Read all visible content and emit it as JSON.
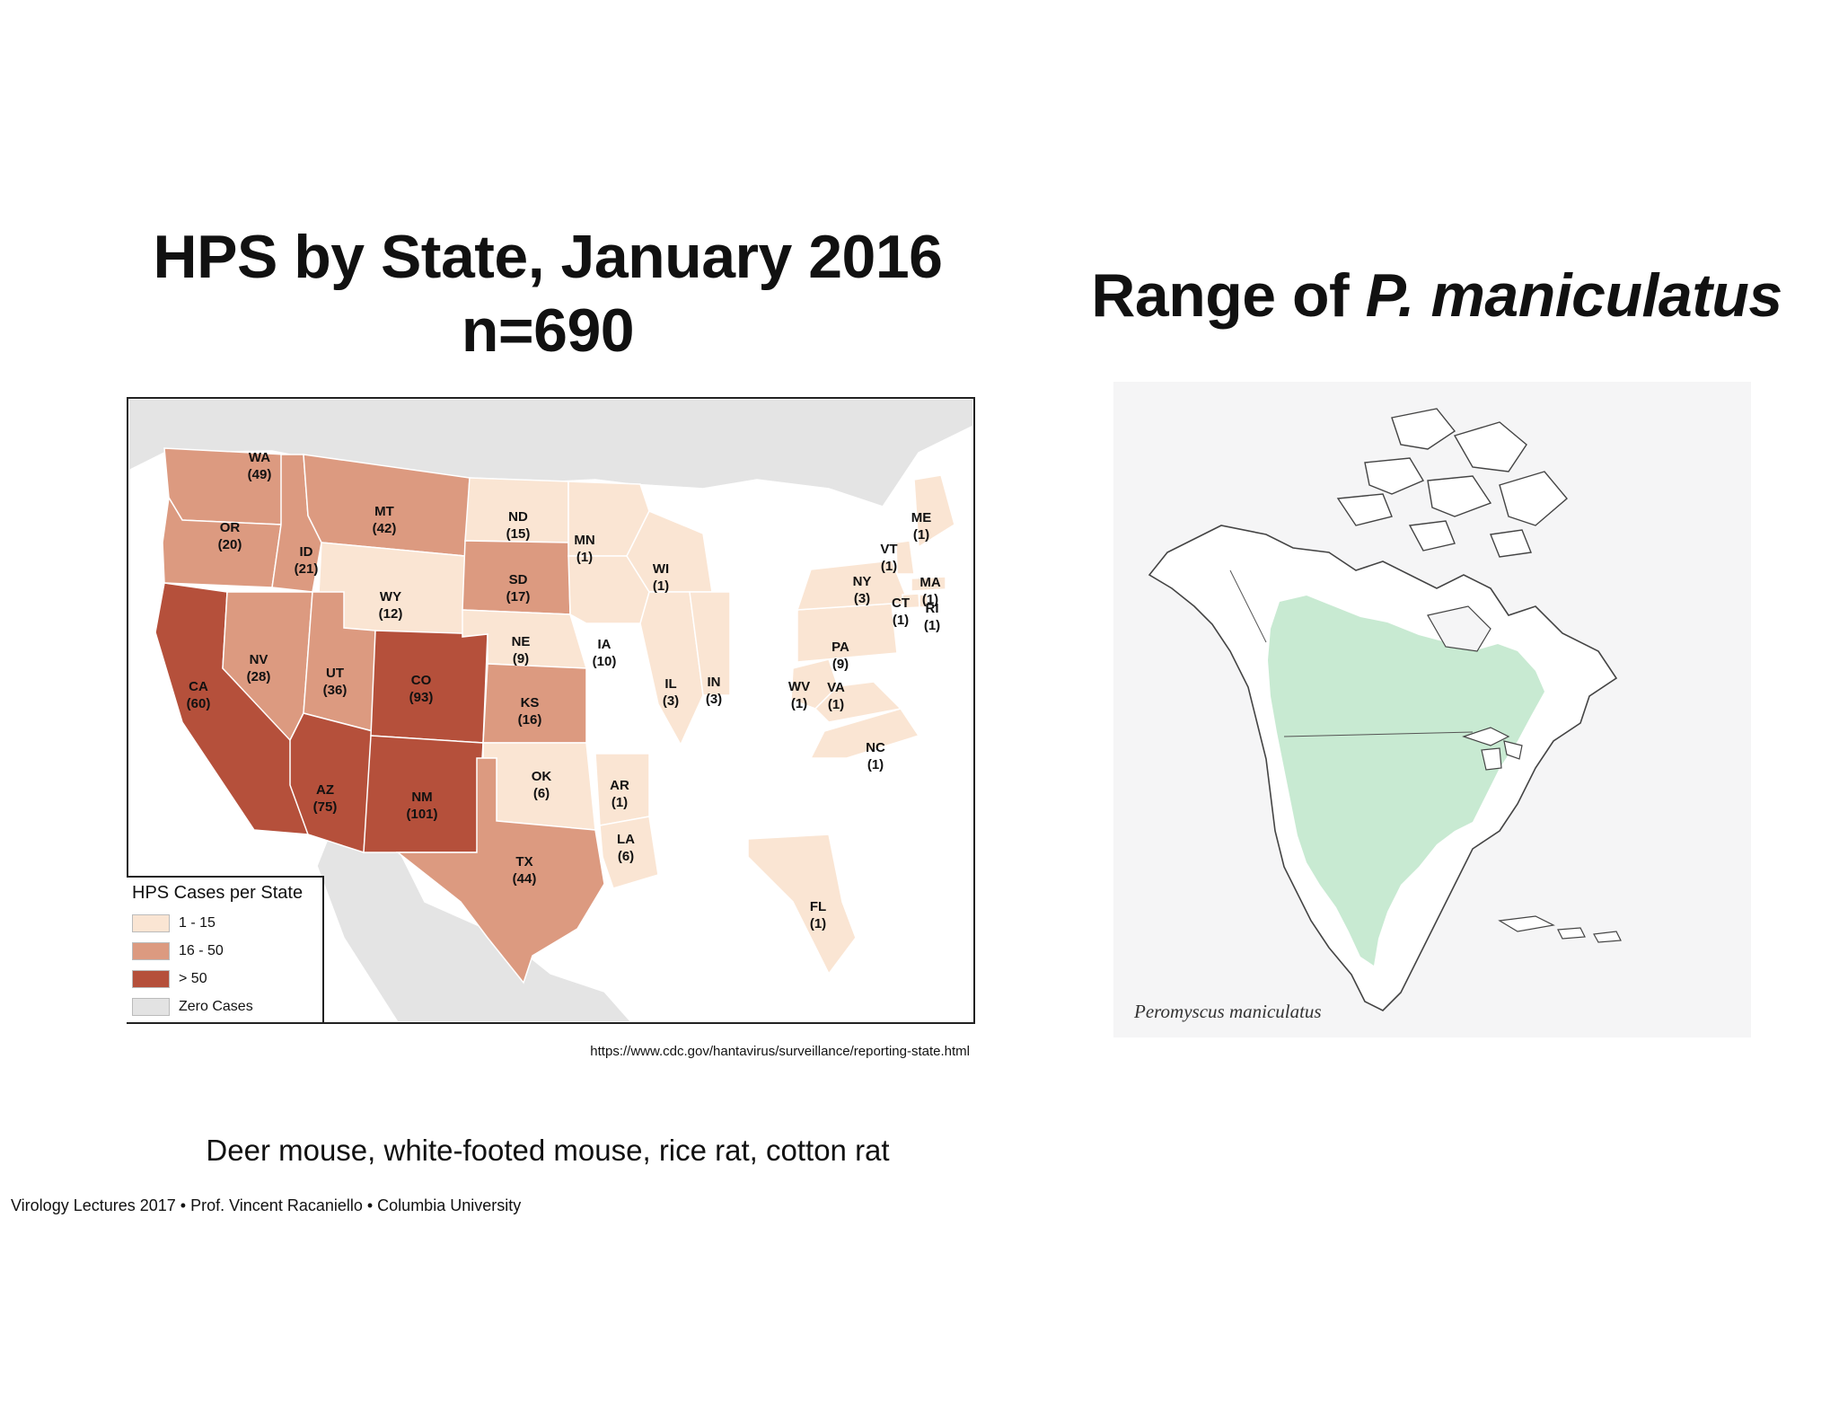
{
  "left_panel": {
    "title_line1": "HPS by State, January 2016",
    "title_line2": "n=690",
    "source_url": "https://www.cdc.gov/hantavirus/surveillance/reporting-state.html",
    "legend": {
      "title": "HPS Cases per State",
      "items": [
        {
          "label": "1 - 15",
          "color": "#fae5d3"
        },
        {
          "label": "16 - 50",
          "color": "#dc9a80"
        },
        {
          "label": "> 50",
          "color": "#b5503b"
        },
        {
          "label": "Zero Cases",
          "color": "#e3e3e3"
        }
      ]
    }
  },
  "right_panel": {
    "title_prefix": "Range of ",
    "title_species": "P. maniculatus",
    "caption": "Peromyscus maniculatus",
    "range_color": "#c5e9d0"
  },
  "hosts_text": "Deer mouse, white-footed mouse, rice rat, cotton rat",
  "credit": "Virology Lectures 2017 • Prof. Vincent Racaniello • Columbia University",
  "states": [
    {
      "abbr": "WA",
      "count": "(49)",
      "cases": 49
    },
    {
      "abbr": "OR",
      "count": "(20)",
      "cases": 20
    },
    {
      "abbr": "CA",
      "count": "(60)",
      "cases": 60
    },
    {
      "abbr": "ID",
      "count": "(21)",
      "cases": 21
    },
    {
      "abbr": "NV",
      "count": "(28)",
      "cases": 28
    },
    {
      "abbr": "MT",
      "count": "(42)",
      "cases": 42
    },
    {
      "abbr": "WY",
      "count": "(12)",
      "cases": 12
    },
    {
      "abbr": "UT",
      "count": "(36)",
      "cases": 36
    },
    {
      "abbr": "AZ",
      "count": "(75)",
      "cases": 75
    },
    {
      "abbr": "CO",
      "count": "(93)",
      "cases": 93
    },
    {
      "abbr": "NM",
      "count": "(101)",
      "cases": 101
    },
    {
      "abbr": "ND",
      "count": "(15)",
      "cases": 15
    },
    {
      "abbr": "SD",
      "count": "(17)",
      "cases": 17
    },
    {
      "abbr": "NE",
      "count": "(9)",
      "cases": 9
    },
    {
      "abbr": "KS",
      "count": "(16)",
      "cases": 16
    },
    {
      "abbr": "OK",
      "count": "(6)",
      "cases": 6
    },
    {
      "abbr": "TX",
      "count": "(44)",
      "cases": 44
    },
    {
      "abbr": "MN",
      "count": "(1)",
      "cases": 1
    },
    {
      "abbr": "IA",
      "count": "(10)",
      "cases": 10
    },
    {
      "abbr": "AR",
      "count": "(1)",
      "cases": 1
    },
    {
      "abbr": "LA",
      "count": "(6)",
      "cases": 6
    },
    {
      "abbr": "WI",
      "count": "(1)",
      "cases": 1
    },
    {
      "abbr": "IL",
      "count": "(3)",
      "cases": 3
    },
    {
      "abbr": "IN",
      "count": "(3)",
      "cases": 3
    },
    {
      "abbr": "WV",
      "count": "(1)",
      "cases": 1
    },
    {
      "abbr": "VA",
      "count": "(1)",
      "cases": 1
    },
    {
      "abbr": "NC",
      "count": "(1)",
      "cases": 1
    },
    {
      "abbr": "PA",
      "count": "(9)",
      "cases": 9
    },
    {
      "abbr": "NY",
      "count": "(3)",
      "cases": 3
    },
    {
      "abbr": "VT",
      "count": "(1)",
      "cases": 1
    },
    {
      "abbr": "ME",
      "count": "(1)",
      "cases": 1
    },
    {
      "abbr": "MA",
      "count": "(1)",
      "cases": 1
    },
    {
      "abbr": "CT",
      "count": "(1)",
      "cases": 1
    },
    {
      "abbr": "RI",
      "count": "(1)",
      "cases": 1
    },
    {
      "abbr": "FL",
      "count": "(1)",
      "cases": 1
    }
  ]
}
